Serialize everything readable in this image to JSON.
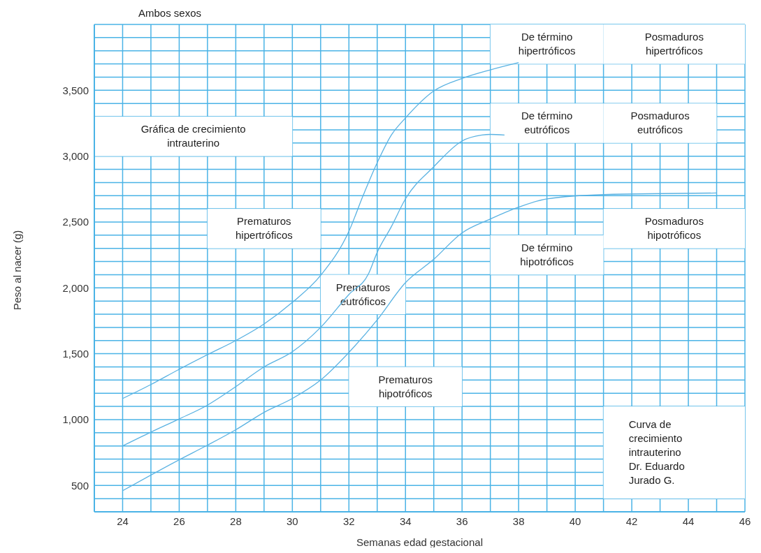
{
  "chart_data": {
    "type": "line",
    "title": "Ambos sexos",
    "xlabel": "Semanas edad gestacional",
    "ylabel": "Peso al nacer (g)",
    "series": [
      {
        "color": "#5ab2e2",
        "x": [
          24,
          25,
          26,
          27,
          28,
          29,
          30,
          31,
          32,
          32.5,
          33,
          33.5,
          34,
          35,
          36,
          37,
          38
        ],
        "values": [
          1160,
          1266,
          1382,
          1493,
          1600,
          1726,
          1890,
          2095,
          2430,
          2700,
          2950,
          3160,
          3290,
          3495,
          3590,
          3655,
          3710
        ]
      },
      {
        "color": "#5ab2e2",
        "x": [
          24,
          25,
          26,
          27,
          28,
          29,
          30,
          31,
          32,
          32.7,
          33,
          33.5,
          34,
          35,
          36,
          36.7,
          37,
          37.5
        ],
        "values": [
          800,
          905,
          1005,
          1110,
          1250,
          1400,
          1515,
          1700,
          1950,
          2110,
          2270,
          2465,
          2676,
          2920,
          3115,
          3160,
          3165,
          3160
        ]
      },
      {
        "color": "#5ab2e2",
        "x": [
          24,
          26,
          27,
          28,
          29,
          30,
          31,
          32,
          33,
          34,
          35,
          36,
          37,
          38,
          39,
          41,
          45
        ],
        "values": [
          460,
          695,
          806,
          923,
          1055,
          1160,
          1300,
          1510,
          1757,
          2040,
          2217,
          2418,
          2523,
          2613,
          2676,
          2708,
          2720
        ]
      }
    ],
    "xlim": [
      23,
      46
    ],
    "ylim": [
      300,
      4000
    ],
    "xticks": [
      24,
      {
        "value": 25,
        "label": null
      },
      26,
      {
        "value": 27,
        "label": null
      },
      28,
      {
        "value": 29,
        "label": null
      },
      30,
      {
        "value": 31,
        "label": null
      },
      32,
      {
        "value": 33,
        "label": null
      },
      34,
      {
        "value": 35,
        "label": null
      },
      36,
      {
        "value": 37,
        "label": null
      },
      38,
      {
        "value": 39,
        "label": null
      },
      40,
      {
        "value": 41,
        "label": null
      },
      42,
      {
        "value": 43,
        "label": null
      },
      44,
      {
        "value": 45,
        "label": null
      },
      46
    ],
    "yticks": [
      {
        "value": 400,
        "label": null
      },
      {
        "value": 500,
        "label": "500"
      },
      {
        "value": 600,
        "label": null
      },
      {
        "value": 700,
        "label": null
      },
      {
        "value": 800,
        "label": null
      },
      {
        "value": 900,
        "label": null
      },
      {
        "value": 1000,
        "label": "1,000"
      },
      {
        "value": 1100,
        "label": null
      },
      {
        "value": 1200,
        "label": null
      },
      {
        "value": 1300,
        "label": null
      },
      {
        "value": 1400,
        "label": null
      },
      {
        "value": 1500,
        "label": "1,500"
      },
      {
        "value": 1600,
        "label": null
      },
      {
        "value": 1700,
        "label": null
      },
      {
        "value": 1800,
        "label": null
      },
      {
        "value": 1900,
        "label": null
      },
      {
        "value": 2000,
        "label": "2,000"
      },
      {
        "value": 2100,
        "label": null
      },
      {
        "value": 2200,
        "label": null
      },
      {
        "value": 2300,
        "label": null
      },
      {
        "value": 2400,
        "label": null
      },
      {
        "value": 2500,
        "label": "2,500"
      },
      {
        "value": 2600,
        "label": null
      },
      {
        "value": 2700,
        "label": null
      },
      {
        "value": 2800,
        "label": null
      },
      {
        "value": 2900,
        "label": null
      },
      {
        "value": 3000,
        "label": "3,000"
      },
      {
        "value": 3100,
        "label": null
      },
      {
        "value": 3200,
        "label": null
      },
      {
        "value": 3300,
        "label": null
      },
      {
        "value": 3400,
        "label": null
      },
      {
        "value": 3500,
        "label": "3,500"
      },
      {
        "value": 3600,
        "label": null
      },
      {
        "value": 3700,
        "label": null
      },
      {
        "value": 3800,
        "label": null
      },
      {
        "value": 3900,
        "label": null
      },
      {
        "value": 4000,
        "label": null
      }
    ],
    "grid": true,
    "marker": "none",
    "line_style": "solid",
    "annotations": [
      "Gráfica de crecimiento\nintrauterino",
      "Prematuros\nhipertróficos",
      "Prematuros\neutróficos",
      "Prematuros\nhipotróficos",
      "De término\nhipertróficos",
      "De término\neutróficos",
      "De término\nhipotróficos",
      "Posmaduros\nhipertróficos",
      "Posmaduros\neutróficos",
      "Posmaduros\nhipotróficos",
      "Curva de\ncrecimiento\nintrauterino\nDr. Eduardo\nJurado G."
    ]
  }
}
